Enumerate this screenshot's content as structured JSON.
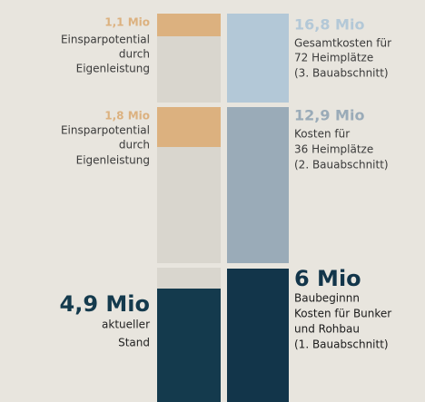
{
  "left": [
    {
      "amount": "1,1 Mio",
      "lines": [
        "Einsparpotential",
        "durch",
        "Eigenleistung"
      ]
    },
    {
      "amount": "1,8 Mio",
      "lines": [
        "Einsparpotential",
        "durch",
        "Eigenleistung"
      ]
    },
    {
      "amount": "4,9 Mio",
      "lines": [
        "aktueller",
        "Stand"
      ]
    }
  ],
  "right": [
    {
      "amount": "16,8 Mio",
      "lines": [
        "Gesamtkosten für",
        "72 Heimplätze",
        "(3. Bauabschnitt)"
      ]
    },
    {
      "amount": "12,9 Mio",
      "lines": [
        "Kosten für",
        "36 Heimplätze",
        "(2. Bauabschnitt)"
      ]
    },
    {
      "amount": "6 Mio",
      "lines": [
        "Baubeginnn",
        "Kosten für Bunker",
        "und Rohbau",
        "(1. Bauabschnitt)"
      ]
    }
  ]
}
